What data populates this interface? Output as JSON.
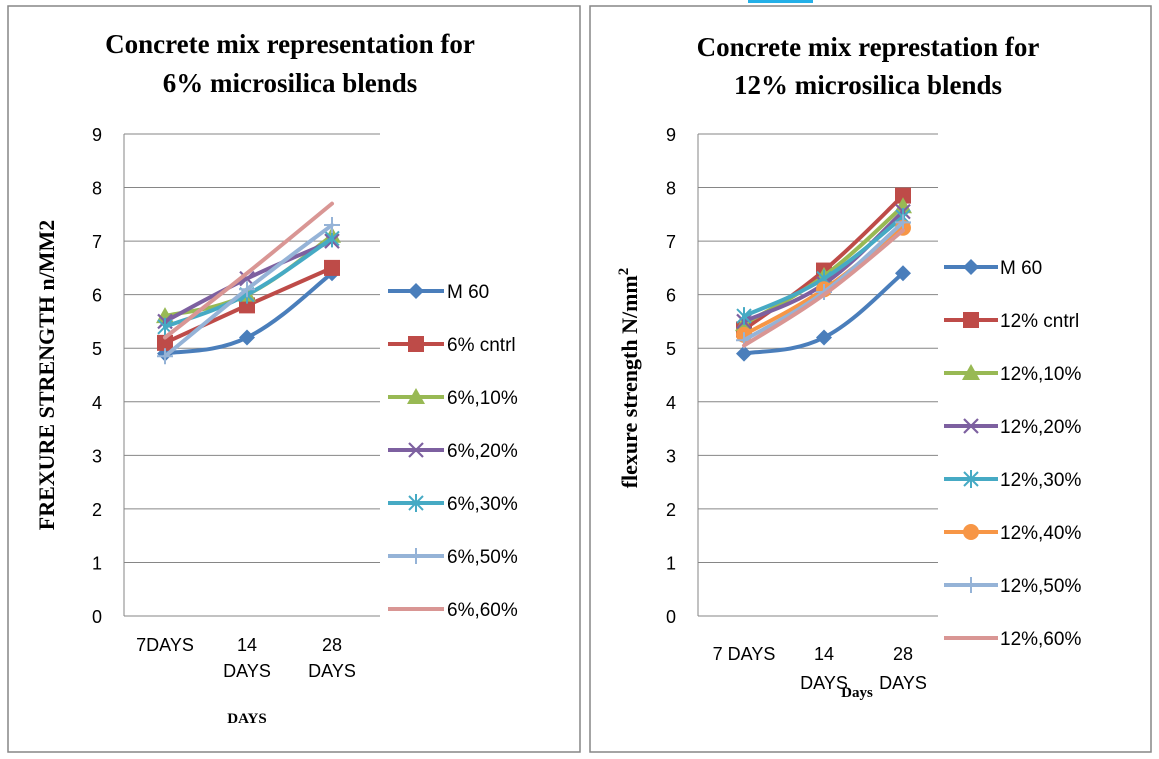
{
  "chart_data": [
    {
      "type": "line",
      "title": "Concrete mix representation for 6% microsilica blends",
      "title_lines": [
        "Concrete mix representation for",
        "6% microsilica blends"
      ],
      "xlabel": "DAYS",
      "ylabel": "FREXURE STRENGTH n/MM2",
      "categories": [
        [
          "7DAYS"
        ],
        [
          "14",
          "DAYS"
        ],
        [
          "28",
          "DAYS"
        ]
      ],
      "ylim": [
        0,
        9
      ],
      "yticks": [
        "0",
        "1",
        "2",
        "3",
        "4",
        "5",
        "6",
        "7",
        "8",
        "9"
      ],
      "grid": true,
      "legend_position": "right",
      "series": [
        {
          "name": "M 60",
          "color": "#4a7ebb",
          "marker": "diamond",
          "values": [
            4.9,
            5.2,
            6.4
          ]
        },
        {
          "name": "6% cntrl",
          "color": "#be4b48",
          "marker": "square",
          "values": [
            5.1,
            5.8,
            6.5
          ]
        },
        {
          "name": "6%,10%",
          "color": "#98b954",
          "marker": "triangle",
          "values": [
            5.6,
            6.0,
            7.1
          ]
        },
        {
          "name": "6%,20%",
          "color": "#7d60a0",
          "marker": "x",
          "values": [
            5.5,
            6.3,
            7.0
          ]
        },
        {
          "name": "6%,30%",
          "color": "#46aac4",
          "marker": "star",
          "values": [
            5.4,
            6.0,
            7.05
          ]
        },
        {
          "name": "6%,50%",
          "color": "#95b3d7",
          "marker": "plus",
          "values": [
            4.85,
            6.1,
            7.3
          ]
        },
        {
          "name": "6%,60%",
          "color": "#d99694",
          "marker": "none",
          "values": [
            5.2,
            6.4,
            7.7
          ]
        }
      ]
    },
    {
      "type": "line",
      "title": "Concrete mix represtation for 12% microsilica blends",
      "title_lines": [
        "Concrete mix represtation for",
        "12% microsilica blends"
      ],
      "xlabel": "Days",
      "ylabel": "flexure strength N/mm",
      "ylabel_superscript": "2",
      "categories": [
        [
          "7 DAYS"
        ],
        [
          "14",
          "DAYS"
        ],
        [
          "28",
          "DAYS"
        ]
      ],
      "ylim": [
        0,
        9
      ],
      "yticks": [
        "0",
        "1",
        "2",
        "3",
        "4",
        "5",
        "6",
        "7",
        "8",
        "9"
      ],
      "grid": true,
      "legend_position": "right",
      "series": [
        {
          "name": "M 60",
          "color": "#4a7ebb",
          "marker": "diamond",
          "values": [
            4.9,
            5.2,
            6.4
          ]
        },
        {
          "name": "12% cntrl",
          "color": "#be4b48",
          "marker": "square",
          "values": [
            5.35,
            6.45,
            7.85
          ]
        },
        {
          "name": "12%,10%",
          "color": "#98b954",
          "marker": "triangle",
          "values": [
            5.45,
            6.35,
            7.65
          ]
        },
        {
          "name": "12%,20%",
          "color": "#7d60a0",
          "marker": "x",
          "values": [
            5.5,
            6.2,
            7.55
          ]
        },
        {
          "name": "12%,30%",
          "color": "#46aac4",
          "marker": "star",
          "values": [
            5.6,
            6.3,
            7.45
          ]
        },
        {
          "name": "12%,40%",
          "color": "#f79646",
          "marker": "circle",
          "values": [
            5.25,
            6.1,
            7.25
          ]
        },
        {
          "name": "12%,50%",
          "color": "#95b3d7",
          "marker": "plus",
          "values": [
            5.15,
            6.05,
            7.35
          ]
        },
        {
          "name": "12%,60%",
          "color": "#d99694",
          "marker": "none",
          "values": [
            5.05,
            6.0,
            7.2
          ]
        }
      ]
    }
  ]
}
